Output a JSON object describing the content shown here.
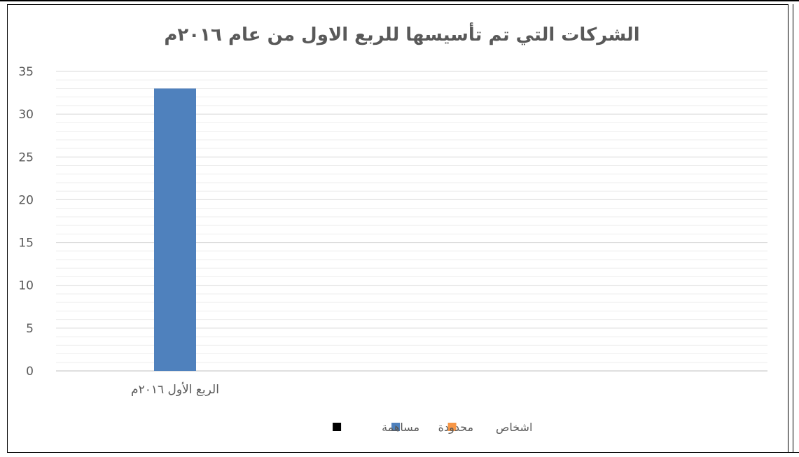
{
  "chart_data": {
    "type": "bar",
    "title": "الشركات التي تم تأسيسها للربع الاول من عام ٢٠١٦م",
    "categories": [
      "الربع الأول ٢٠١٦م"
    ],
    "series": [
      {
        "name": "مساهمة",
        "values": [
          0
        ],
        "color": "#000000"
      },
      {
        "name": "محدودة",
        "values": [
          33
        ],
        "color": "#4f81bd"
      },
      {
        "name": "اشخاص",
        "values": [
          0
        ],
        "color": "#f79646"
      }
    ],
    "ylim": [
      0,
      35
    ],
    "yticks": [
      "0",
      "5",
      "10",
      "15",
      "20",
      "25",
      "30",
      "35"
    ],
    "ytick_values": [
      0,
      5,
      10,
      15,
      20,
      25,
      30,
      35
    ],
    "minor_step": 1,
    "grid": true,
    "legend_position": "bottom"
  }
}
